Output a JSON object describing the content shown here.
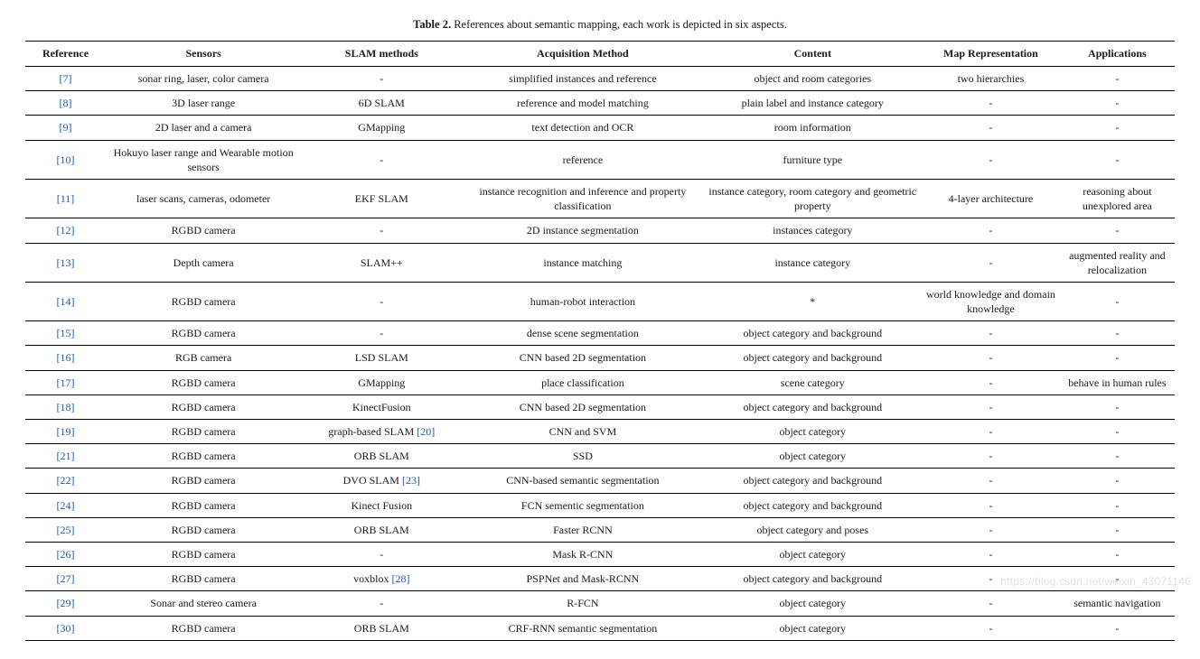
{
  "caption_bold": "Table 2.",
  "caption_rest": " References about semantic mapping, each work is depicted in six aspects.",
  "columns": [
    "Reference",
    "Sensors",
    "SLAM methods",
    "Acquisition Method",
    "Content",
    "Map Representation",
    "Applications"
  ],
  "rows": [
    {
      "ref": "[7]",
      "sensors": "sonar ring, laser, color camera",
      "slam": "-",
      "acq": "simplified instances and reference",
      "content": "object and room categories",
      "map": "two hierarchies",
      "app": "-"
    },
    {
      "ref": "[8]",
      "sensors": "3D laser range",
      "slam": "6D SLAM",
      "acq": "reference and model matching",
      "content": "plain label and instance category",
      "map": "-",
      "app": "-"
    },
    {
      "ref": "[9]",
      "sensors": "2D laser and a camera",
      "slam": "GMapping",
      "acq": "text detection and OCR",
      "content": "room information",
      "map": "-",
      "app": "-"
    },
    {
      "ref": "[10]",
      "sensors": "Hokuyo laser range and Wearable motion sensors",
      "slam": "-",
      "acq": "reference",
      "content": "furniture type",
      "map": "-",
      "app": "-"
    },
    {
      "ref": "[11]",
      "sensors": "laser scans, cameras, odometer",
      "slam": "EKF SLAM",
      "acq": "instance recognition and inference and property classification",
      "content": "instance category, room category and geometric property",
      "map": "4-layer architecture",
      "app": "reasoning about unexplored area"
    },
    {
      "ref": "[12]",
      "sensors": "RGBD camera",
      "slam": "-",
      "acq": "2D instance segmentation",
      "content": "instances category",
      "map": "-",
      "app": "-"
    },
    {
      "ref": "[13]",
      "sensors": "Depth camera",
      "slam": "SLAM++",
      "acq": "instance matching",
      "content": "instance category",
      "map": "-",
      "app": "augmented reality and relocalization"
    },
    {
      "ref": "[14]",
      "sensors": "RGBD camera",
      "slam": "-",
      "acq": "human-robot interaction",
      "content": "*",
      "map": "world knowledge and domain knowledge",
      "app": "-"
    },
    {
      "ref": "[15]",
      "sensors": "RGBD camera",
      "slam": "-",
      "acq": "dense scene segmentation",
      "content": "object category and background",
      "map": "-",
      "app": "-"
    },
    {
      "ref": "[16]",
      "sensors": "RGB camera",
      "slam": "LSD SLAM",
      "acq": "CNN based 2D segmentation",
      "content": "object category and background",
      "map": "-",
      "app": "-"
    },
    {
      "ref": "[17]",
      "sensors": "RGBD camera",
      "slam": "GMapping",
      "acq": "place classification",
      "content": "scene category",
      "map": "-",
      "app": "behave in human rules"
    },
    {
      "ref": "[18]",
      "sensors": "RGBD camera",
      "slam": "KinectFusion",
      "acq": "CNN based 2D segmentation",
      "content": "object category and background",
      "map": "-",
      "app": "-"
    },
    {
      "ref": "[19]",
      "sensors": "RGBD camera",
      "slam": "graph-based SLAM [20]",
      "slam_link": "[20]",
      "acq": "CNN and SVM",
      "content": "object category",
      "map": "-",
      "app": "-"
    },
    {
      "ref": "[21]",
      "sensors": "RGBD camera",
      "slam": "ORB SLAM",
      "acq": "SSD",
      "content": "object category",
      "map": "-",
      "app": "-"
    },
    {
      "ref": "[22]",
      "sensors": "RGBD camera",
      "slam": "DVO SLAM [23]",
      "slam_link": "[23]",
      "acq": "CNN-based semantic segmentation",
      "content": "object category and background",
      "map": "-",
      "app": "-"
    },
    {
      "ref": "[24]",
      "sensors": "RGBD camera",
      "slam": "Kinect Fusion",
      "acq": "FCN sementic segmentation",
      "content": "object category and background",
      "map": "-",
      "app": "-"
    },
    {
      "ref": "[25]",
      "sensors": "RGBD camera",
      "slam": "ORB SLAM",
      "acq": "Faster RCNN",
      "content": "object category and poses",
      "map": "-",
      "app": "-"
    },
    {
      "ref": "[26]",
      "sensors": "RGBD camera",
      "slam": "-",
      "acq": "Mask R-CNN",
      "content": "object category",
      "map": "-",
      "app": "-"
    },
    {
      "ref": "[27]",
      "sensors": "RGBD camera",
      "slam": "voxblox [28]",
      "slam_link": "[28]",
      "acq": "PSPNet and Mask-RCNN",
      "content": "object category and background",
      "map": "-",
      "app": "-"
    },
    {
      "ref": "[29]",
      "sensors": "Sonar and stereo camera",
      "slam": "-",
      "acq": "R-FCN",
      "content": "object category",
      "map": "-",
      "app": "semantic navigation"
    },
    {
      "ref": "[30]",
      "sensors": "RGBD camera",
      "slam": "ORB SLAM",
      "acq": "CRF-RNN semantic segmentation",
      "content": "object category",
      "map": "-",
      "app": "-"
    }
  ],
  "watermark": "https://blog.csdn.net/weixin_43071146",
  "link_color": "#1b57c4",
  "text_color": "#1a1a1a"
}
